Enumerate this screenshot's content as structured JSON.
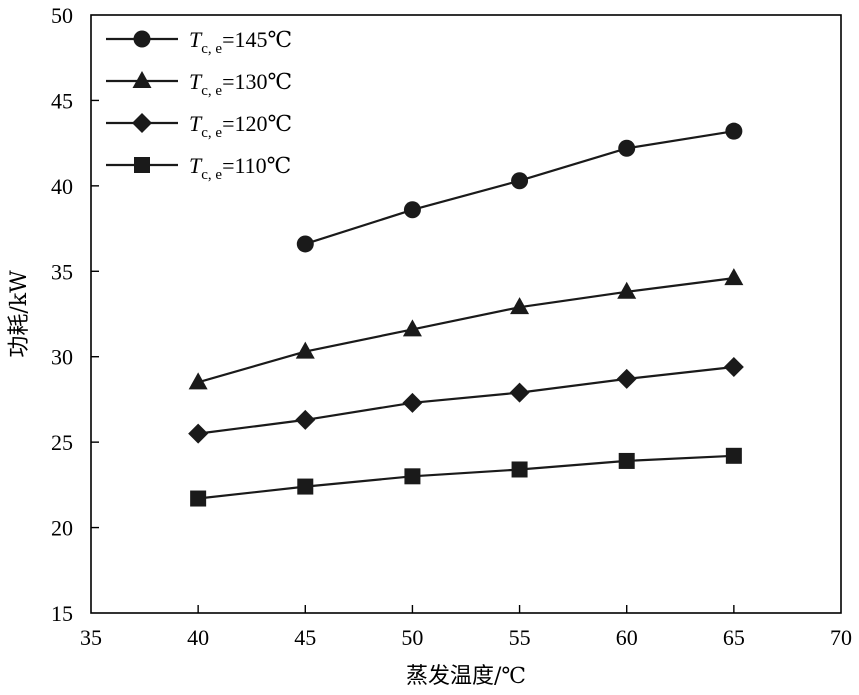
{
  "chart_data": {
    "type": "line",
    "title": "",
    "xlabel": "蒸发温度/℃",
    "ylabel": "功耗/kW",
    "xlim": [
      35,
      70
    ],
    "ylim": [
      15,
      50
    ],
    "xticks": [
      "35",
      "40",
      "45",
      "50",
      "55",
      "60",
      "65",
      "70"
    ],
    "yticks": [
      "15",
      "20",
      "25",
      "30",
      "35",
      "40",
      "45",
      "50"
    ],
    "grid": false,
    "legend_position": "top-left",
    "series": [
      {
        "name": "Tc,e=145℃",
        "legend": {
          "T": "T",
          "sub": "c, e",
          "rest": "=145℃"
        },
        "marker": "circle",
        "x": [
          45,
          50,
          55,
          60,
          65
        ],
        "values": [
          36.6,
          38.6,
          40.3,
          42.2,
          43.2
        ]
      },
      {
        "name": "Tc,e=130℃",
        "legend": {
          "T": "T",
          "sub": "c, e",
          "rest": "=130℃"
        },
        "marker": "triangle",
        "x": [
          40,
          45,
          50,
          55,
          60,
          65
        ],
        "values": [
          28.5,
          30.3,
          31.6,
          32.9,
          33.8,
          34.6
        ]
      },
      {
        "name": "Tc,e=120℃",
        "legend": {
          "T": "T",
          "sub": "c, e",
          "rest": "=120℃"
        },
        "marker": "diamond",
        "x": [
          40,
          45,
          50,
          55,
          60,
          65
        ],
        "values": [
          25.5,
          26.3,
          27.3,
          27.9,
          28.7,
          29.4
        ]
      },
      {
        "name": "Tc,e=110℃",
        "legend": {
          "T": "T",
          "sub": "c, e",
          "rest": "=110℃"
        },
        "marker": "square",
        "x": [
          40,
          45,
          50,
          55,
          60,
          65
        ],
        "values": [
          21.7,
          22.4,
          23.0,
          23.4,
          23.9,
          24.2
        ]
      }
    ]
  },
  "colors": {
    "line": "#1a1a1a",
    "marker": "#1a1a1a",
    "axis": "#000000"
  }
}
